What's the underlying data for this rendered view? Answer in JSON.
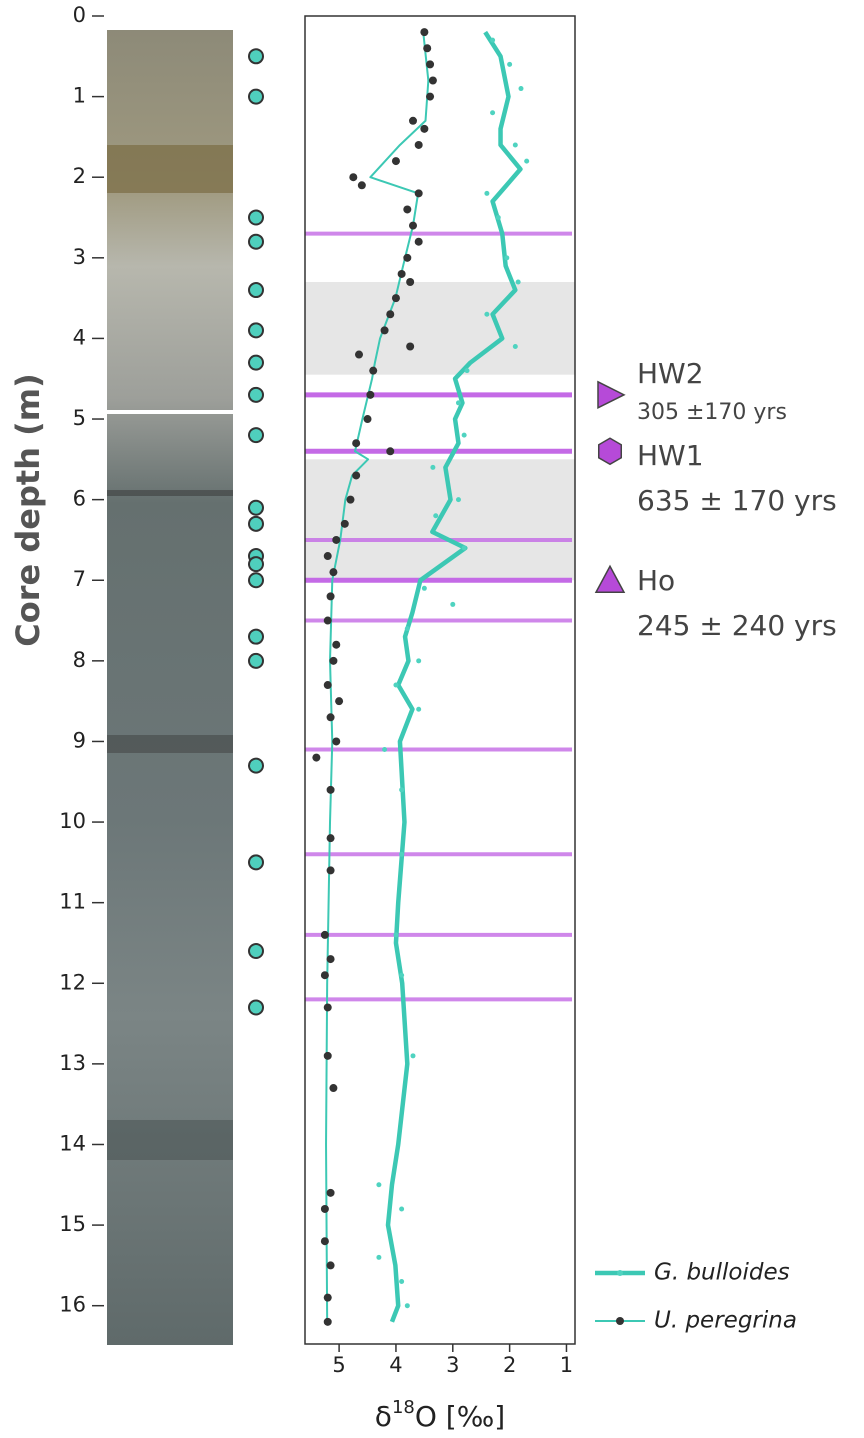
{
  "chart_data": {
    "type": "line",
    "y_label": "Core depth (m)",
    "x_label": [
      "δ",
      "18",
      "O [‰]"
    ],
    "xlim": [
      5.6,
      0.85
    ],
    "xticks": [
      5,
      4,
      3,
      2,
      1
    ],
    "ylim": [
      0,
      16.5
    ],
    "yticks": [
      0,
      1,
      2,
      3,
      4,
      5,
      6,
      7,
      8,
      9,
      10,
      11,
      12,
      13,
      14,
      15,
      16
    ],
    "y_inverted": true,
    "sample_depths": [
      0.5,
      1.0,
      2.5,
      2.8,
      3.4,
      3.9,
      4.3,
      4.7,
      5.2,
      6.1,
      6.3,
      6.7,
      6.8,
      7.0,
      7.7,
      8.0,
      9.3,
      10.5,
      11.6,
      12.3
    ],
    "sample_color": "#4fcfbd",
    "bands": [
      [
        3.3,
        4.45
      ],
      [
        5.5,
        7.0
      ]
    ],
    "band_color": "#e6e6e6",
    "horizons": [
      2.7,
      4.7,
      5.4,
      6.5,
      7.0,
      7.5,
      9.1,
      10.4,
      11.4,
      12.2
    ],
    "horizon_color": "#c46ae6",
    "events": [
      {
        "name": "HW2",
        "age": "305 ±170 yrs",
        "depth": 4.7,
        "marker": "triangle-right"
      },
      {
        "name": "HW1",
        "age": "635 ± 170 yrs",
        "depth": 5.4,
        "marker": "hexagon"
      },
      {
        "name": "Ho",
        "age": "245 ± 240 yrs",
        "depth": 7.0,
        "marker": "triangle-up"
      }
    ],
    "event_color": "#b64ad8",
    "series": [
      {
        "name": "G. bulloides",
        "color": "#3cc8b4",
        "point_color": "#4fd3c0",
        "depth": [
          0.2,
          0.5,
          1.0,
          1.4,
          1.6,
          1.9,
          2.3,
          2.7,
          3.1,
          3.4,
          3.7,
          4.0,
          4.3,
          4.5,
          4.8,
          5.0,
          5.3,
          5.6,
          6.0,
          6.4,
          6.6,
          7.0,
          7.4,
          7.7,
          8.0,
          8.3,
          8.6,
          9.0,
          10,
          11,
          11.5,
          12,
          13,
          14,
          14.5,
          15,
          15.5,
          16,
          16.2
        ],
        "values": [
          2.43,
          2.16,
          2.02,
          2.16,
          2.16,
          1.81,
          2.3,
          2.13,
          2.07,
          1.9,
          2.3,
          2.13,
          2.69,
          2.96,
          2.83,
          2.96,
          2.9,
          3.13,
          3.04,
          3.36,
          2.78,
          3.57,
          3.71,
          3.84,
          3.78,
          3.96,
          3.71,
          3.93,
          3.85,
          3.96,
          4.0,
          3.89,
          3.8,
          3.96,
          4.07,
          4.14,
          4.01,
          3.96,
          4.07
        ],
        "points_depth": [
          0.3,
          0.6,
          0.9,
          1.2,
          1.6,
          1.8,
          2.2,
          2.5,
          3.0,
          3.3,
          3.7,
          4.1,
          4.4,
          4.8,
          5.2,
          5.6,
          6.0,
          6.2,
          6.6,
          7.1,
          7.3,
          7.6,
          8.0,
          8.3,
          8.6,
          9.1,
          9.6,
          10.4,
          11.4,
          11.9,
          12.9,
          14.5,
          14.8,
          15.4,
          15.7,
          16.0
        ],
        "points_values": [
          2.3,
          2.0,
          1.8,
          2.3,
          1.9,
          1.7,
          2.4,
          2.2,
          2.05,
          1.85,
          2.4,
          1.9,
          2.75,
          2.9,
          2.8,
          3.35,
          2.9,
          3.3,
          2.8,
          3.5,
          3.0,
          3.8,
          3.6,
          4.0,
          3.6,
          4.2,
          3.9,
          3.9,
          4.0,
          3.9,
          3.7,
          4.3,
          3.9,
          4.3,
          3.9,
          3.8
        ]
      },
      {
        "name": "U. peregrina",
        "color": "#3cc8b4",
        "point_color": "#333333",
        "depth": [
          0.2,
          0.8,
          1.3,
          1.6,
          1.8,
          2.0,
          2.2,
          2.6,
          3.0,
          3.5,
          4.0,
          4.3,
          4.5,
          5.0,
          5.4,
          5.5,
          5.7,
          6.0,
          6.5,
          7.0,
          8.0,
          9.0,
          10,
          12,
          14,
          16.2
        ],
        "values": [
          3.52,
          3.43,
          3.48,
          3.93,
          4.19,
          4.45,
          3.61,
          3.7,
          3.84,
          4.01,
          4.28,
          4.37,
          4.42,
          4.59,
          4.72,
          4.49,
          4.77,
          4.89,
          4.98,
          5.12,
          5.16,
          5.12,
          5.16,
          5.21,
          5.23,
          5.21
        ],
        "points_depth": [
          0.2,
          0.4,
          0.6,
          0.8,
          1.0,
          1.3,
          1.4,
          1.6,
          1.8,
          2.0,
          2.1,
          2.2,
          2.4,
          2.6,
          2.8,
          3.0,
          3.2,
          3.3,
          3.5,
          3.7,
          3.9,
          4.1,
          4.2,
          4.4,
          4.7,
          5.0,
          5.3,
          5.4,
          5.7,
          6.0,
          6.3,
          6.5,
          6.7,
          6.9,
          7.2,
          7.5,
          7.8,
          8.0,
          8.3,
          8.5,
          8.7,
          9.0,
          9.2,
          9.6,
          10.2,
          10.6,
          11.4,
          11.7,
          11.9,
          12.3,
          12.9,
          13.3,
          14.6,
          14.8,
          15.2,
          15.5,
          15.9,
          16.2
        ],
        "points_values": [
          3.5,
          3.45,
          3.4,
          3.35,
          3.4,
          3.7,
          3.5,
          3.6,
          4.0,
          4.75,
          4.6,
          3.6,
          3.8,
          3.7,
          3.6,
          3.8,
          3.9,
          3.75,
          4.0,
          4.1,
          4.2,
          3.75,
          4.65,
          4.4,
          4.45,
          4.5,
          4.7,
          4.1,
          4.7,
          4.8,
          4.9,
          5.05,
          5.2,
          5.1,
          5.15,
          5.2,
          5.05,
          5.1,
          5.2,
          5.0,
          5.15,
          5.05,
          5.4,
          5.15,
          5.15,
          5.15,
          5.25,
          5.15,
          5.25,
          5.2,
          5.2,
          5.1,
          5.15,
          5.25,
          5.25,
          5.15,
          5.2,
          5.2
        ]
      }
    ]
  }
}
